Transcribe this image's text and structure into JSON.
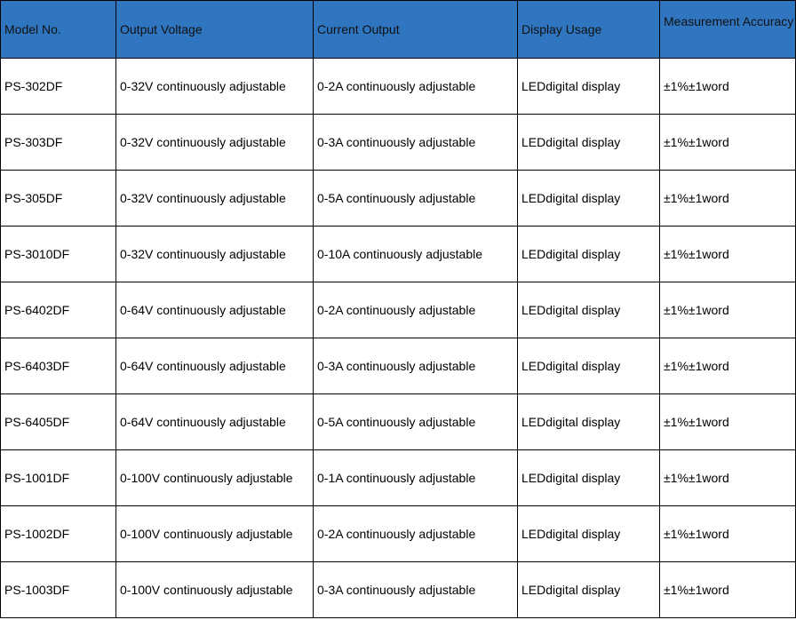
{
  "table": {
    "headers": [
      "Model No.",
      "Output Voltage",
      "Current Output",
      "Display Usage",
      "Measurement Accuracy"
    ],
    "header_bg": "#2f75c0",
    "rows": [
      [
        "PS-302DF",
        "0-32V continuously adjustable",
        "0-2A continuously adjustable",
        "LEDdigital display",
        "±1%±1word"
      ],
      [
        "PS-303DF",
        "0-32V continuously adjustable",
        "0-3A continuously adjustable",
        "LEDdigital display",
        "±1%±1word"
      ],
      [
        "PS-305DF",
        "0-32V continuously adjustable",
        "0-5A continuously adjustable",
        "LEDdigital display",
        "±1%±1word"
      ],
      [
        "PS-3010DF",
        "0-32V continuously adjustable",
        "0-10A continuously adjustable",
        "LEDdigital display",
        "±1%±1word"
      ],
      [
        "PS-6402DF",
        "0-64V continuously adjustable",
        "0-2A continuously adjustable",
        "LEDdigital display",
        "±1%±1word"
      ],
      [
        "PS-6403DF",
        "0-64V continuously adjustable",
        "0-3A continuously adjustable",
        "LEDdigital display",
        "±1%±1word"
      ],
      [
        "PS-6405DF",
        "0-64V continuously adjustable",
        "0-5A continuously adjustable",
        "LEDdigital display",
        "±1%±1word"
      ],
      [
        "PS-1001DF",
        "0-100V continuously adjustable",
        "0-1A continuously adjustable",
        "LEDdigital display",
        "±1%±1word"
      ],
      [
        "PS-1002DF",
        "0-100V continuously adjustable",
        "0-2A continuously adjustable",
        "LEDdigital display",
        "±1%±1word"
      ],
      [
        "PS-1003DF",
        "0-100V continuously adjustable",
        "0-3A continuously adjustable",
        "LEDdigital display",
        "±1%±1word"
      ]
    ]
  }
}
